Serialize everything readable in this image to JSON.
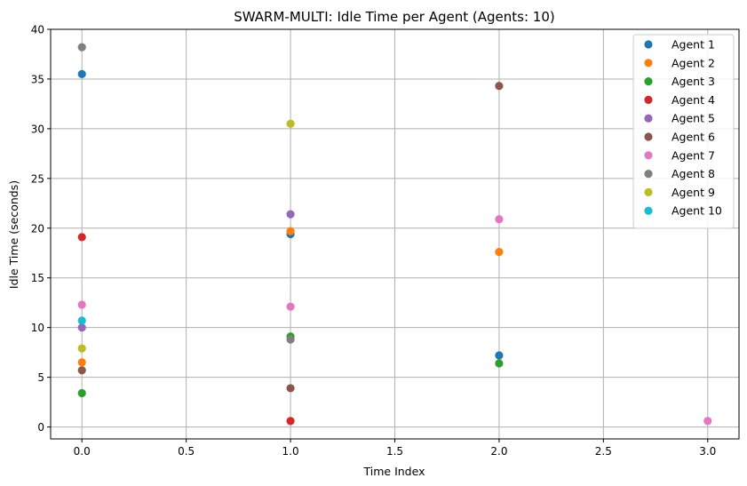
{
  "chart_data": {
    "type": "scatter",
    "title": "SWARM-MULTI: Idle Time per Agent (Agents: 10)",
    "xlabel": "Time Index",
    "ylabel": "Idle Time (seconds)",
    "xlim": [
      -0.15,
      3.15
    ],
    "ylim": [
      -1.2,
      40.0
    ],
    "xticks": [
      0.0,
      0.5,
      1.0,
      1.5,
      2.0,
      2.5,
      3.0
    ],
    "xtick_labels": [
      "0.0",
      "0.5",
      "1.0",
      "1.5",
      "2.0",
      "2.5",
      "3.0"
    ],
    "yticks": [
      0,
      5,
      10,
      15,
      20,
      25,
      30,
      35,
      40
    ],
    "ytick_labels": [
      "0",
      "5",
      "10",
      "15",
      "20",
      "25",
      "30",
      "35",
      "40"
    ],
    "grid": true,
    "legend_position": "top-right",
    "series": [
      {
        "name": "Agent 1",
        "color": "#1f77b4",
        "points": [
          [
            0,
            35.5
          ],
          [
            1,
            19.4
          ],
          [
            2,
            7.2
          ]
        ]
      },
      {
        "name": "Agent 2",
        "color": "#ff7f0e",
        "points": [
          [
            0,
            6.5
          ],
          [
            1,
            19.7
          ],
          [
            2,
            17.6
          ]
        ]
      },
      {
        "name": "Agent 3",
        "color": "#2ca02c",
        "points": [
          [
            0,
            3.4
          ],
          [
            1,
            9.1
          ],
          [
            2,
            6.4
          ]
        ]
      },
      {
        "name": "Agent 4",
        "color": "#d62728",
        "points": [
          [
            0,
            19.1
          ],
          [
            1,
            0.6
          ]
        ]
      },
      {
        "name": "Agent 5",
        "color": "#9467bd",
        "points": [
          [
            0,
            10.0
          ],
          [
            1,
            21.4
          ]
        ]
      },
      {
        "name": "Agent 6",
        "color": "#8c564b",
        "points": [
          [
            0,
            5.7
          ],
          [
            1,
            3.9
          ],
          [
            2,
            34.3
          ]
        ]
      },
      {
        "name": "Agent 7",
        "color": "#e377c2",
        "points": [
          [
            0,
            12.3
          ],
          [
            1,
            12.1
          ],
          [
            2,
            20.9
          ],
          [
            3,
            0.6
          ]
        ]
      },
      {
        "name": "Agent 8",
        "color": "#7f7f7f",
        "points": [
          [
            0,
            38.2
          ],
          [
            1,
            8.8
          ]
        ]
      },
      {
        "name": "Agent 9",
        "color": "#bcbd22",
        "points": [
          [
            0,
            7.9
          ],
          [
            1,
            30.5
          ]
        ]
      },
      {
        "name": "Agent 10",
        "color": "#17becf",
        "points": [
          [
            0,
            10.7
          ]
        ]
      }
    ]
  }
}
